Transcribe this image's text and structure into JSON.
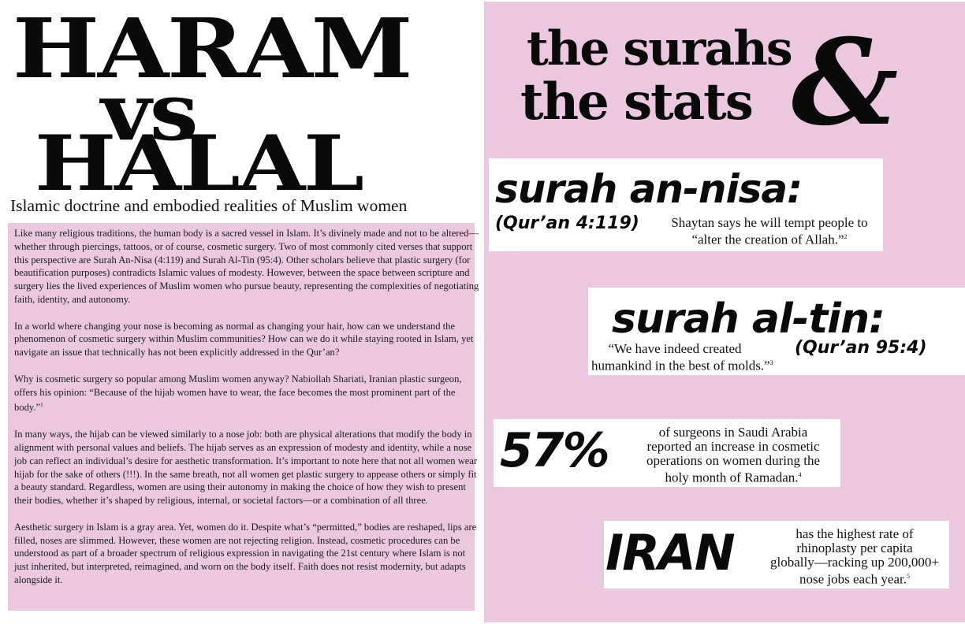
{
  "left_page": {
    "headline_line1": "HARAM",
    "headline_line2": "vs",
    "headline_line3": "HALAL",
    "subtitle": "Islamic doctrine and embodied realities of Muslim women",
    "paragraphs": [
      "Like many religious traditions, the human body is a sacred vessel in Islam. It’s divinely made and not to be altered—whether through piercings, tattoos, or of course, cosmetic surgery. Two of most commonly cited verses that support this perspective are Surah An-Nisa (4:119) and Surah Al-Tin (95:4). Other scholars believe that plastic surgery (for beautification purposes) contradicts Islamic values of modesty. However, between the space between scripture and surgery lies the lived experiences of Muslim women who pursue beauty, representing the complexities of negotiating faith, identity, and autonomy.",
      "In a world where changing your nose is becoming as normal as changing your hair, how can we understand the phenomenon of cosmetic surgery within Muslim communities? How can we do it while staying rooted in Islam, yet navigate an issue that technically has not been explicitly addressed in the Qur’an?",
      "Why is cosmetic surgery so popular among Muslim women anyway? Nabiollah Shariati, Iranian plastic surgeon, offers his opinion: “Because of the hijab women have to wear, the face becomes the most prominent part of the body.”",
      "In many ways, the hijab can be viewed similarly to a nose job: both are physical alterations that modify the body in alignment with personal values and beliefs. The hijab serves as an expression of modesty and identity, while a nose job can reflect an individual’s desire for aesthetic transformation. It’s important to note here that not all women wear hijab for the sake of others (!!!). In the same breath, not all women get plastic surgery to appease others or simply fit a beauty standard. Regardless, women are using their autonomy in making the choice of how they wish to present their bodies, whether it’s shaped by religious, internal, or societal factors—or a combination of all three.",
      "Aesthetic surgery in Islam is a gray area. Yet, women do it. Despite what’s “permitted,” bodies are reshaped, lips are filled, noses are slimmed. However, these women are not rejecting religion. Instead, cosmetic procedures can be understood as part of a broader spectrum of religious expression in navigating the 21st century where Islam is not just inherited, but interpreted, reimagined, and worn on the body itself. Faith does not resist modernity, but adapts alongside it."
    ],
    "footnote_1": "1"
  },
  "right_page": {
    "title_line1": "the surahs",
    "title_line2": "the stats",
    "ampersand": "&",
    "card1": {
      "heading": "surah an-nisa:",
      "reference": "(Qur’an 4:119)",
      "text_line1": "Shaytan says he will tempt people to",
      "text_line2": "“alter the creation of Allah.”",
      "footnote": "2"
    },
    "card2": {
      "heading": "surah al-tin:",
      "reference": "(Qur’an 95:4)",
      "text_line1": "“We have indeed created",
      "text_line2": "humankind in the best of molds.”",
      "footnote": "3"
    },
    "card3": {
      "big": "57%",
      "text_line1": "of surgeons in Saudi Arabia",
      "text_line2": "reported an increase in cosmetic",
      "text_line3": "operations on women during the",
      "text_line4": "holy month of Ramadan.",
      "footnote": "4"
    },
    "card4": {
      "big": "IRAN",
      "text_line1": "has the highest rate of",
      "text_line2": "rhinoplasty per capita",
      "text_line3": "globally—racking up 200,000+",
      "text_line4": "nose jobs each year.",
      "footnote": "5"
    }
  }
}
